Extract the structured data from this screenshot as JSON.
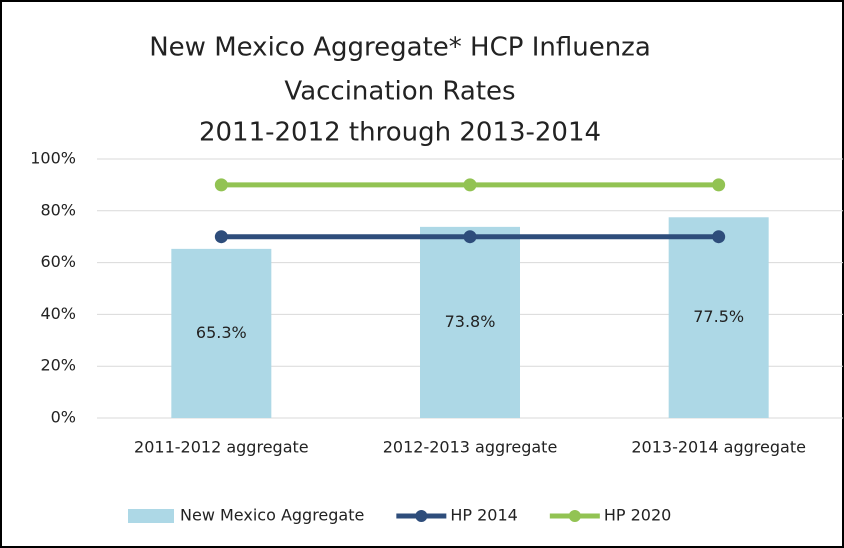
{
  "chart_data": {
    "type": "bar",
    "title": [
      "New Mexico Aggregate* HCP Influenza",
      "Vaccination Rates",
      "2011-2012 through 2013-2014"
    ],
    "categories": [
      "2011-2012 aggregate",
      "2012-2013 aggregate",
      "2013-2014 aggregate"
    ],
    "series": [
      {
        "name": "New Mexico Aggregate",
        "type": "bar",
        "color": "#add8e6",
        "values": [
          65.3,
          73.8,
          77.5
        ],
        "value_labels": [
          "65.3%",
          "73.8%",
          "77.5%"
        ]
      },
      {
        "name": "HP 2014",
        "type": "line",
        "color": "#2e4d7b",
        "values": [
          70,
          70,
          70
        ]
      },
      {
        "name": "HP 2020",
        "type": "line",
        "color": "#92c353",
        "values": [
          90,
          90,
          90
        ]
      }
    ],
    "ylim": [
      0,
      100
    ],
    "yticks": [
      {
        "value": 0,
        "label": "0%"
      },
      {
        "value": 20,
        "label": "20%"
      },
      {
        "value": 40,
        "label": "40%"
      },
      {
        "value": 60,
        "label": "60%"
      },
      {
        "value": 80,
        "label": "80%"
      },
      {
        "value": 100,
        "label": "100%"
      }
    ],
    "grid": true,
    "legend": "bottom"
  }
}
